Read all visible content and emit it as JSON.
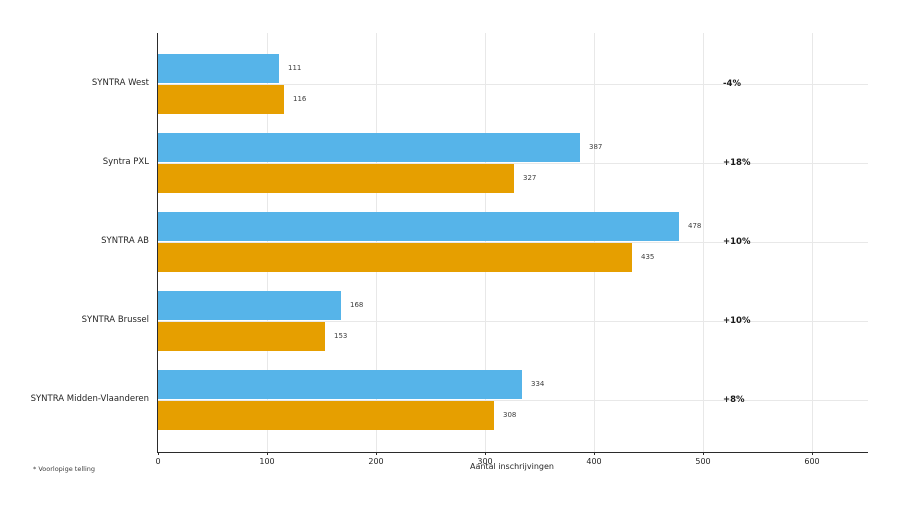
{
  "figure": {
    "background": "#ffffff"
  },
  "chart_data": {
    "type": "bar",
    "orientation": "horizontal",
    "title": "",
    "xlabel": "Aantal inschrijvingen",
    "ylabel": "",
    "categories": [
      "SYNTRA West",
      "Syntra PXL",
      "SYNTRA AB",
      "SYNTRA Brussel",
      "SYNTRA Midden-Vlaanderen"
    ],
    "series": [
      {
        "name": "blue",
        "color": "#56B4E9",
        "values": [
          111,
          387,
          478,
          168,
          334
        ]
      },
      {
        "name": "orange",
        "color": "#E69F00",
        "values": [
          116,
          327,
          435,
          153,
          308
        ]
      }
    ],
    "change_labels": [
      "-4%",
      "+18%",
      "+10%",
      "+10%",
      "+8%"
    ],
    "x_ticks": [
      0,
      100,
      200,
      300,
      400,
      500,
      600
    ],
    "xlim": [
      0,
      651
    ],
    "grid": true,
    "legend": "none",
    "footnote": "* Voorlopige telling"
  }
}
